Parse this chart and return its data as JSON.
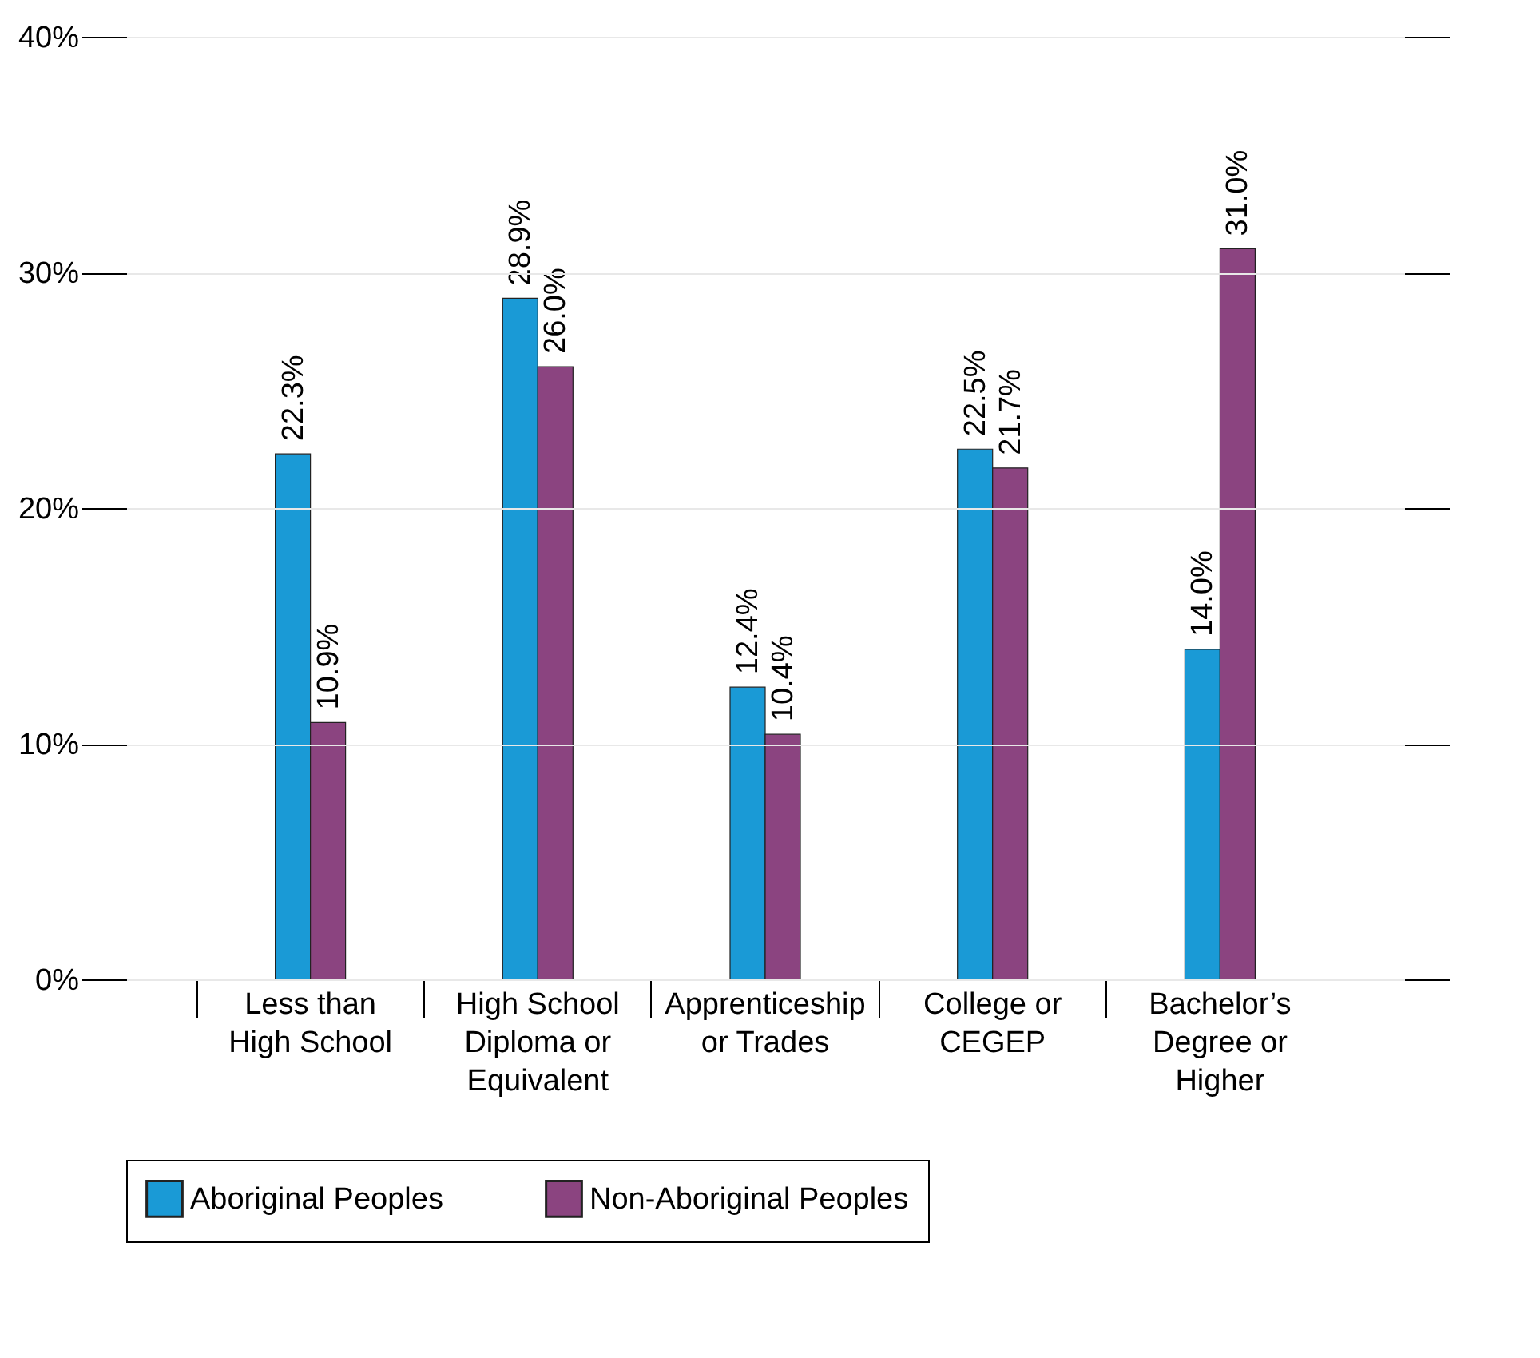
{
  "chart_data": {
    "type": "bar",
    "categories": [
      "Less than High School",
      "High School Diploma or Equivalent",
      "Apprenticeship or Trades",
      "College or CEGEP",
      "Bachelor’s Degree or Higher"
    ],
    "series": [
      {
        "name": "Aboriginal Peoples",
        "color": "#1a9ad6",
        "values": [
          22.3,
          28.9,
          12.4,
          22.5,
          14.0
        ],
        "value_labels": [
          "22.3%",
          "28.9%",
          "12.4%",
          "22.5%",
          "14.0%"
        ]
      },
      {
        "name": "Non-Aboriginal Peoples",
        "color": "#8b4480",
        "values": [
          10.9,
          26.0,
          10.4,
          21.7,
          31.0
        ],
        "value_labels": [
          "10.9%",
          "26.0%",
          "10.4%",
          "21.7%",
          "31.0%"
        ]
      }
    ],
    "ylim": [
      0,
      40
    ],
    "yticks": [
      {
        "value": 0,
        "label": "0%"
      },
      {
        "value": 10,
        "label": "10%"
      },
      {
        "value": 20,
        "label": "20%"
      },
      {
        "value": 30,
        "label": "30%"
      },
      {
        "value": 40,
        "label": "40%"
      }
    ],
    "grid": "y",
    "legend": "bottom"
  }
}
